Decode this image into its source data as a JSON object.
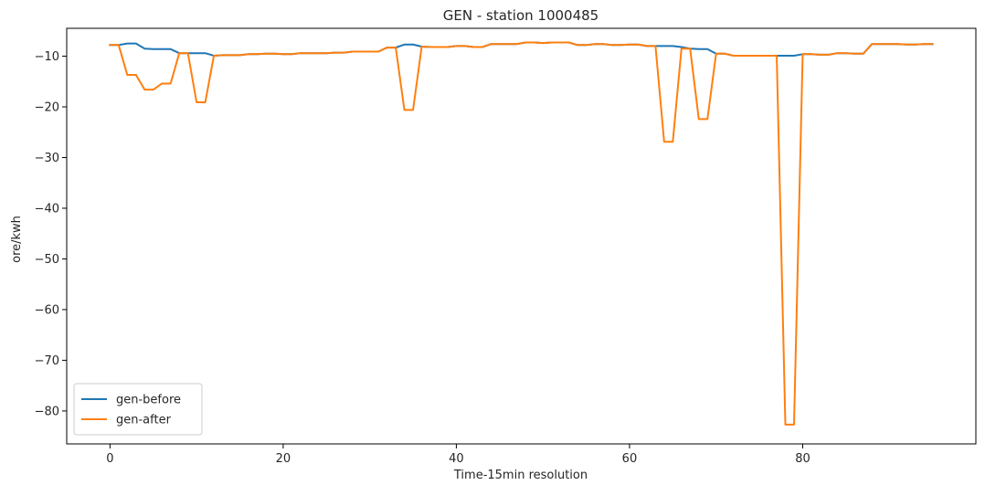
{
  "chart_data": {
    "type": "line",
    "title": "GEN - station 1000485",
    "xlabel": "Time-15min resolution",
    "ylabel": "ore/kwh",
    "xlim": [
      -5,
      100
    ],
    "ylim": [
      -86.5,
      -4.5
    ],
    "xticks": [
      0,
      20,
      40,
      60,
      80
    ],
    "yticks": [
      -10,
      -20,
      -30,
      -40,
      -50,
      -60,
      -70,
      -80
    ],
    "xtick_labels": [
      "0",
      "20",
      "40",
      "60",
      "80"
    ],
    "ytick_labels": [
      "−10",
      "−20",
      "−30",
      "−40",
      "−50",
      "−60",
      "−70",
      "−80"
    ],
    "grid": false,
    "legend_position": "lower-left",
    "series": [
      {
        "name": "gen-before",
        "color": "#1f77b4",
        "x": [
          0,
          1,
          2,
          3,
          4,
          5,
          6,
          7,
          8,
          9,
          10,
          11,
          12,
          13,
          14,
          15,
          16,
          17,
          18,
          19,
          20,
          21,
          22,
          23,
          24,
          25,
          26,
          27,
          28,
          29,
          30,
          31,
          32,
          33,
          34,
          35,
          36,
          37,
          38,
          39,
          40,
          41,
          42,
          43,
          44,
          45,
          46,
          47,
          48,
          49,
          50,
          51,
          52,
          53,
          54,
          55,
          56,
          57,
          58,
          59,
          60,
          61,
          62,
          63,
          64,
          65,
          66,
          67,
          68,
          69,
          70,
          71,
          72,
          73,
          74,
          75,
          76,
          77,
          78,
          79,
          80,
          81,
          82,
          83,
          84,
          85,
          86,
          87,
          88,
          89,
          90,
          91,
          92,
          93,
          94,
          95
        ],
        "y": [
          -7.8,
          -7.8,
          -7.5,
          -7.5,
          -8.5,
          -8.6,
          -8.6,
          -8.6,
          -9.4,
          -9.4,
          -9.4,
          -9.4,
          -9.9,
          -9.8,
          -9.8,
          -9.8,
          -9.6,
          -9.6,
          -9.5,
          -9.5,
          -9.6,
          -9.6,
          -9.4,
          -9.4,
          -9.4,
          -9.4,
          -9.3,
          -9.3,
          -9.1,
          -9.1,
          -9.1,
          -9.1,
          -8.3,
          -8.3,
          -7.7,
          -7.7,
          -8.1,
          -8.2,
          -8.2,
          -8.2,
          -8.0,
          -8.0,
          -8.2,
          -8.2,
          -7.6,
          -7.6,
          -7.6,
          -7.6,
          -7.3,
          -7.3,
          -7.4,
          -7.3,
          -7.3,
          -7.3,
          -7.8,
          -7.8,
          -7.6,
          -7.6,
          -7.8,
          -7.8,
          -7.7,
          -7.7,
          -8.0,
          -8.0,
          -8.0,
          -8.0,
          -8.2,
          -8.5,
          -8.6,
          -8.6,
          -9.5,
          -9.5,
          -9.9,
          -9.9,
          -9.9,
          -9.9,
          -9.9,
          -9.9,
          -9.9,
          -9.9,
          -9.6,
          -9.6,
          -9.7,
          -9.7,
          -9.4,
          -9.4,
          -9.5,
          -9.5,
          -7.6,
          -7.6,
          -7.6,
          -7.6,
          -7.7,
          -7.7,
          -7.6,
          -7.6
        ]
      },
      {
        "name": "gen-after",
        "color": "#ff7f0e",
        "x": [
          0,
          1,
          2,
          3,
          4,
          5,
          6,
          7,
          8,
          9,
          10,
          11,
          12,
          13,
          14,
          15,
          16,
          17,
          18,
          19,
          20,
          21,
          22,
          23,
          24,
          25,
          26,
          27,
          28,
          29,
          30,
          31,
          32,
          33,
          34,
          35,
          36,
          37,
          38,
          39,
          40,
          41,
          42,
          43,
          44,
          45,
          46,
          47,
          48,
          49,
          50,
          51,
          52,
          53,
          54,
          55,
          56,
          57,
          58,
          59,
          60,
          61,
          62,
          63,
          64,
          65,
          66,
          67,
          68,
          69,
          70,
          71,
          72,
          73,
          74,
          75,
          76,
          77,
          78,
          79,
          80,
          81,
          82,
          83,
          84,
          85,
          86,
          87,
          88,
          89,
          90,
          91,
          92,
          93,
          94,
          95
        ],
        "y": [
          -7.8,
          -7.8,
          -13.7,
          -13.7,
          -16.6,
          -16.6,
          -15.4,
          -15.4,
          -9.4,
          -9.4,
          -19.1,
          -19.1,
          -9.9,
          -9.8,
          -9.8,
          -9.8,
          -9.6,
          -9.6,
          -9.5,
          -9.5,
          -9.6,
          -9.6,
          -9.4,
          -9.4,
          -9.4,
          -9.4,
          -9.3,
          -9.3,
          -9.1,
          -9.1,
          -9.1,
          -9.1,
          -8.3,
          -8.3,
          -20.6,
          -20.6,
          -8.1,
          -8.2,
          -8.2,
          -8.2,
          -8.0,
          -8.0,
          -8.2,
          -8.2,
          -7.6,
          -7.6,
          -7.6,
          -7.6,
          -7.3,
          -7.3,
          -7.4,
          -7.3,
          -7.3,
          -7.3,
          -7.8,
          -7.8,
          -7.6,
          -7.6,
          -7.8,
          -7.8,
          -7.7,
          -7.7,
          -8.0,
          -8.0,
          -26.9,
          -26.9,
          -8.5,
          -8.5,
          -22.4,
          -22.4,
          -9.5,
          -9.5,
          -9.9,
          -9.9,
          -9.9,
          -9.9,
          -9.9,
          -9.9,
          -82.7,
          -82.7,
          -9.6,
          -9.6,
          -9.7,
          -9.7,
          -9.4,
          -9.4,
          -9.5,
          -9.5,
          -7.6,
          -7.6,
          -7.6,
          -7.6,
          -7.7,
          -7.7,
          -7.6,
          -7.6
        ]
      }
    ]
  }
}
